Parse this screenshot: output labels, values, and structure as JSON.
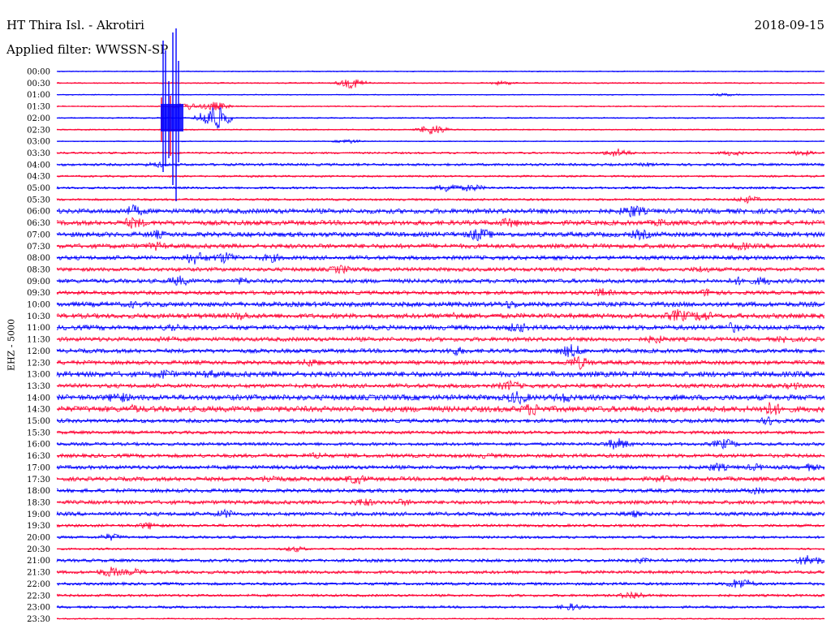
{
  "header": {
    "station": "HT Thira Isl. - Akrotiri",
    "date": "2018-09-15",
    "filter": "Applied filter: WWSSN-SP",
    "channel": "EHZ - 5000"
  },
  "colors": {
    "blue": "#0000ff",
    "red": "#ff0033"
  },
  "chart_data": {
    "type": "line",
    "title": "HT Thira Isl. - Akrotiri",
    "subtitle": "Applied filter: WWSSN-SP",
    "ylabel": "EHZ - 5000",
    "xlabel": "",
    "rows": [
      {
        "label": "00:00",
        "color": "blue",
        "amp": 0.6,
        "bursts": []
      },
      {
        "label": "00:30",
        "color": "red",
        "amp": 0.8,
        "bursts": [
          [
            0.385,
            7
          ],
          [
            0.58,
            3
          ]
        ]
      },
      {
        "label": "01:00",
        "color": "blue",
        "amp": 0.6,
        "bursts": [
          [
            0.87,
            2
          ]
        ]
      },
      {
        "label": "01:30",
        "color": "red",
        "amp": 0.8,
        "bursts": [
          [
            0.17,
            5
          ],
          [
            0.205,
            6
          ]
        ]
      },
      {
        "label": "02:00",
        "color": "blue",
        "amp": 0.8,
        "bursts": [
          [
            0.205,
            18
          ]
        ]
      },
      {
        "label": "02:30",
        "color": "red",
        "amp": 0.8,
        "bursts": [
          [
            0.49,
            7
          ]
        ]
      },
      {
        "label": "03:00",
        "color": "blue",
        "amp": 0.6,
        "bursts": [
          [
            0.38,
            3
          ]
        ]
      },
      {
        "label": "03:30",
        "color": "red",
        "amp": 1.2,
        "bursts": [
          [
            0.73,
            6
          ],
          [
            0.88,
            4
          ],
          [
            0.97,
            4
          ]
        ]
      },
      {
        "label": "04:00",
        "color": "blue",
        "amp": 1.6,
        "bursts": [
          [
            0.13,
            4
          ],
          [
            0.77,
            3
          ]
        ]
      },
      {
        "label": "04:30",
        "color": "red",
        "amp": 1.2,
        "bursts": []
      },
      {
        "label": "05:00",
        "color": "blue",
        "amp": 1.4,
        "bursts": [
          [
            0.51,
            6
          ],
          [
            0.54,
            5
          ]
        ]
      },
      {
        "label": "05:30",
        "color": "red",
        "amp": 1.4,
        "bursts": [
          [
            0.9,
            5
          ]
        ]
      },
      {
        "label": "06:00",
        "color": "blue",
        "amp": 3.0,
        "bursts": [
          [
            0.1,
            8
          ],
          [
            0.75,
            9
          ]
        ]
      },
      {
        "label": "06:30",
        "color": "red",
        "amp": 3.0,
        "bursts": [
          [
            0.1,
            8
          ],
          [
            0.59,
            7
          ],
          [
            0.79,
            6
          ]
        ]
      },
      {
        "label": "07:00",
        "color": "blue",
        "amp": 3.0,
        "bursts": [
          [
            0.13,
            6
          ],
          [
            0.55,
            9
          ],
          [
            0.76,
            7
          ]
        ]
      },
      {
        "label": "07:30",
        "color": "red",
        "amp": 2.8,
        "bursts": [
          [
            0.13,
            6
          ],
          [
            0.89,
            6
          ]
        ]
      },
      {
        "label": "08:00",
        "color": "blue",
        "amp": 2.6,
        "bursts": [
          [
            0.18,
            9
          ],
          [
            0.22,
            8
          ],
          [
            0.28,
            6
          ]
        ]
      },
      {
        "label": "08:30",
        "color": "red",
        "amp": 2.4,
        "bursts": [
          [
            0.37,
            6
          ],
          [
            0.84,
            5
          ]
        ]
      },
      {
        "label": "09:00",
        "color": "blue",
        "amp": 2.6,
        "bursts": [
          [
            0.16,
            7
          ],
          [
            0.24,
            5
          ],
          [
            0.89,
            6
          ],
          [
            0.92,
            6
          ]
        ]
      },
      {
        "label": "09:30",
        "color": "red",
        "amp": 2.4,
        "bursts": [
          [
            0.71,
            6
          ],
          [
            0.85,
            6
          ]
        ]
      },
      {
        "label": "10:00",
        "color": "blue",
        "amp": 3.0,
        "bursts": [
          [
            0.1,
            5
          ],
          [
            0.59,
            6
          ]
        ]
      },
      {
        "label": "10:30",
        "color": "red",
        "amp": 3.0,
        "bursts": [
          [
            0.24,
            6
          ],
          [
            0.52,
            6
          ],
          [
            0.81,
            9
          ],
          [
            0.84,
            8
          ]
        ]
      },
      {
        "label": "11:00",
        "color": "blue",
        "amp": 3.0,
        "bursts": [
          [
            0.15,
            6
          ],
          [
            0.6,
            7
          ],
          [
            0.88,
            7
          ]
        ]
      },
      {
        "label": "11:30",
        "color": "red",
        "amp": 2.6,
        "bursts": [
          [
            0.14,
            5
          ],
          [
            0.78,
            6
          ],
          [
            0.95,
            5
          ]
        ]
      },
      {
        "label": "12:00",
        "color": "blue",
        "amp": 2.6,
        "bursts": [
          [
            0.52,
            6
          ],
          [
            0.67,
            9
          ]
        ]
      },
      {
        "label": "12:30",
        "color": "red",
        "amp": 2.6,
        "bursts": [
          [
            0.33,
            6
          ],
          [
            0.68,
            9
          ]
        ]
      },
      {
        "label": "13:00",
        "color": "blue",
        "amp": 3.4,
        "bursts": [
          [
            0.14,
            7
          ],
          [
            0.2,
            6
          ]
        ]
      },
      {
        "label": "13:30",
        "color": "red",
        "amp": 2.6,
        "bursts": [
          [
            0.59,
            7
          ],
          [
            0.96,
            5
          ]
        ]
      },
      {
        "label": "14:00",
        "color": "blue",
        "amp": 3.4,
        "bursts": [
          [
            0.08,
            8
          ],
          [
            0.6,
            9
          ],
          [
            0.66,
            7
          ]
        ]
      },
      {
        "label": "14:30",
        "color": "red",
        "amp": 3.6,
        "bursts": [
          [
            0.1,
            6
          ],
          [
            0.62,
            9
          ],
          [
            0.93,
            10
          ]
        ]
      },
      {
        "label": "15:00",
        "color": "blue",
        "amp": 2.4,
        "bursts": [
          [
            0.93,
            6
          ]
        ]
      },
      {
        "label": "15:30",
        "color": "red",
        "amp": 2.0,
        "bursts": []
      },
      {
        "label": "16:00",
        "color": "blue",
        "amp": 2.0,
        "bursts": [
          [
            0.73,
            8
          ],
          [
            0.87,
            7
          ]
        ]
      },
      {
        "label": "16:30",
        "color": "red",
        "amp": 2.4,
        "bursts": [
          [
            0.34,
            5
          ],
          [
            0.56,
            4
          ]
        ]
      },
      {
        "label": "17:00",
        "color": "blue",
        "amp": 2.4,
        "bursts": [
          [
            0.86,
            6
          ],
          [
            0.91,
            5
          ],
          [
            0.98,
            5
          ]
        ]
      },
      {
        "label": "17:30",
        "color": "red",
        "amp": 2.6,
        "bursts": [
          [
            0.28,
            6
          ],
          [
            0.39,
            7
          ],
          [
            0.79,
            5
          ]
        ]
      },
      {
        "label": "18:00",
        "color": "blue",
        "amp": 2.4,
        "bursts": [
          [
            0.91,
            5
          ]
        ]
      },
      {
        "label": "18:30",
        "color": "red",
        "amp": 2.4,
        "bursts": [
          [
            0.4,
            6
          ],
          [
            0.45,
            5
          ]
        ]
      },
      {
        "label": "19:00",
        "color": "blue",
        "amp": 2.4,
        "bursts": [
          [
            0.22,
            6
          ],
          [
            0.75,
            5
          ]
        ]
      },
      {
        "label": "19:30",
        "color": "red",
        "amp": 1.8,
        "bursts": [
          [
            0.12,
            5
          ]
        ]
      },
      {
        "label": "20:00",
        "color": "blue",
        "amp": 1.6,
        "bursts": [
          [
            0.07,
            5
          ]
        ]
      },
      {
        "label": "20:30",
        "color": "red",
        "amp": 1.2,
        "bursts": [
          [
            0.31,
            4
          ]
        ]
      },
      {
        "label": "21:00",
        "color": "blue",
        "amp": 2.0,
        "bursts": [
          [
            0.76,
            4
          ],
          [
            0.98,
            8
          ]
        ]
      },
      {
        "label": "21:30",
        "color": "red",
        "amp": 2.0,
        "bursts": [
          [
            0.07,
            7
          ],
          [
            0.1,
            5
          ]
        ]
      },
      {
        "label": "22:00",
        "color": "blue",
        "amp": 1.8,
        "bursts": [
          [
            0.89,
            8
          ]
        ]
      },
      {
        "label": "22:30",
        "color": "red",
        "amp": 1.6,
        "bursts": [
          [
            0.75,
            6
          ]
        ]
      },
      {
        "label": "23:00",
        "color": "blue",
        "amp": 1.4,
        "bursts": [
          [
            0.67,
            5
          ]
        ]
      },
      {
        "label": "23:30",
        "color": "red",
        "amp": 0.8,
        "bursts": []
      }
    ]
  }
}
